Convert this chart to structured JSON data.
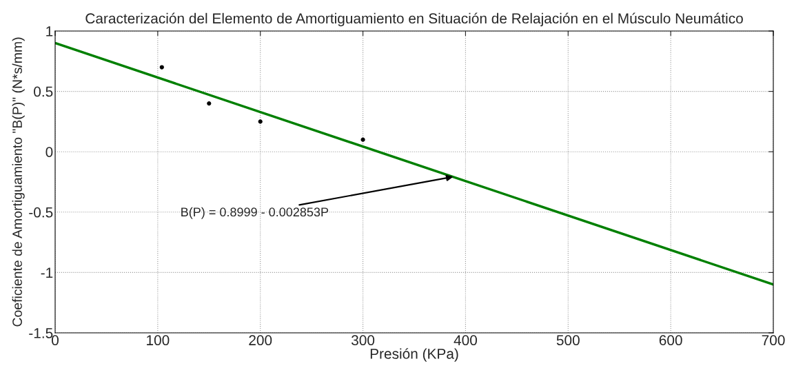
{
  "chart_data": {
    "type": "scatter",
    "title": "Caracterización del Elemento de Amortiguamiento en Situación de Relajación en el Músculo Neumático",
    "xlabel": "Presión (KPa)",
    "ylabel": "Coeficiente de Amortiguamiento \"B(P)\" (N*s/mm)",
    "series": [
      {
        "color": "#000000",
        "x": [
          104,
          150,
          200,
          300
        ],
        "values": [
          0.7,
          0.4,
          0.25,
          0.1
        ],
        "marker": "circle"
      },
      {
        "type": "line",
        "color": "#008000",
        "x": [
          0,
          700
        ],
        "values": [
          0.9,
          -1.1
        ],
        "marker": "none",
        "line_style": "solid"
      }
    ],
    "annotations": [
      {
        "text": "B(P) = 0.8999 - 0.002853P",
        "x": 388,
        "y": -0.207
      }
    ],
    "xlim": [
      0,
      700
    ],
    "xticks": [
      0,
      100,
      200,
      300,
      400,
      500,
      600,
      700
    ],
    "ylim": [
      -1.5,
      1
    ],
    "yticks": [
      -1.5,
      -1,
      -0.5,
      0,
      0.5,
      1
    ],
    "grid": true
  }
}
